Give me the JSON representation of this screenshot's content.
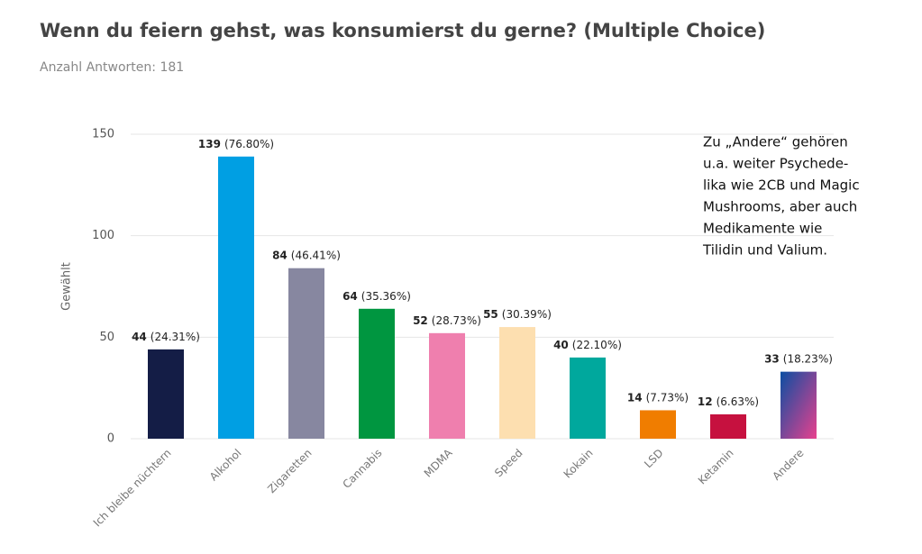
{
  "chart_data": {
    "type": "bar",
    "title": "Wenn du feiern gehst, was konsumierst du gerne? (Multiple Choice)",
    "subtitle": "Anzahl Antworten: 181",
    "y_label": "Gewählt",
    "categories": [
      "Ich bleibe nüchtern",
      "Alkohol",
      "Zigaretten",
      "Cannabis",
      "MDMA",
      "Speed",
      "Kokain",
      "LSD",
      "Ketamin",
      "Andere"
    ],
    "values": [
      44,
      139,
      84,
      64,
      52,
      55,
      40,
      14,
      12,
      33
    ],
    "share_labels": [
      "(24.31%)",
      "(76.80%)",
      "(46.41%)",
      "(35.36%)",
      "(28.73%)",
      "(30.39%)",
      "(22.10%)",
      "(7.73%)",
      "(6.63%)",
      "(18.23%)"
    ],
    "colors": [
      "#141d46",
      "#009fe3",
      "#8787a0",
      "#009640",
      "#ef7fae",
      "#fddfb0",
      "#00a89d",
      "#f07d00",
      "#c6113f",
      {
        "from": "#0b4ea2",
        "to": "#e8418e"
      }
    ],
    "ylim": [
      0,
      150
    ],
    "yticks": [
      0,
      50,
      100,
      150
    ],
    "grid": true,
    "annotation": [
      "Zu „Andere“ gehören",
      "u.a. weiter Psychede-",
      "lika wie 2CB und Magic",
      "Mushrooms, aber auch",
      "Medikamente wie",
      "Tilidin und Valium."
    ]
  }
}
